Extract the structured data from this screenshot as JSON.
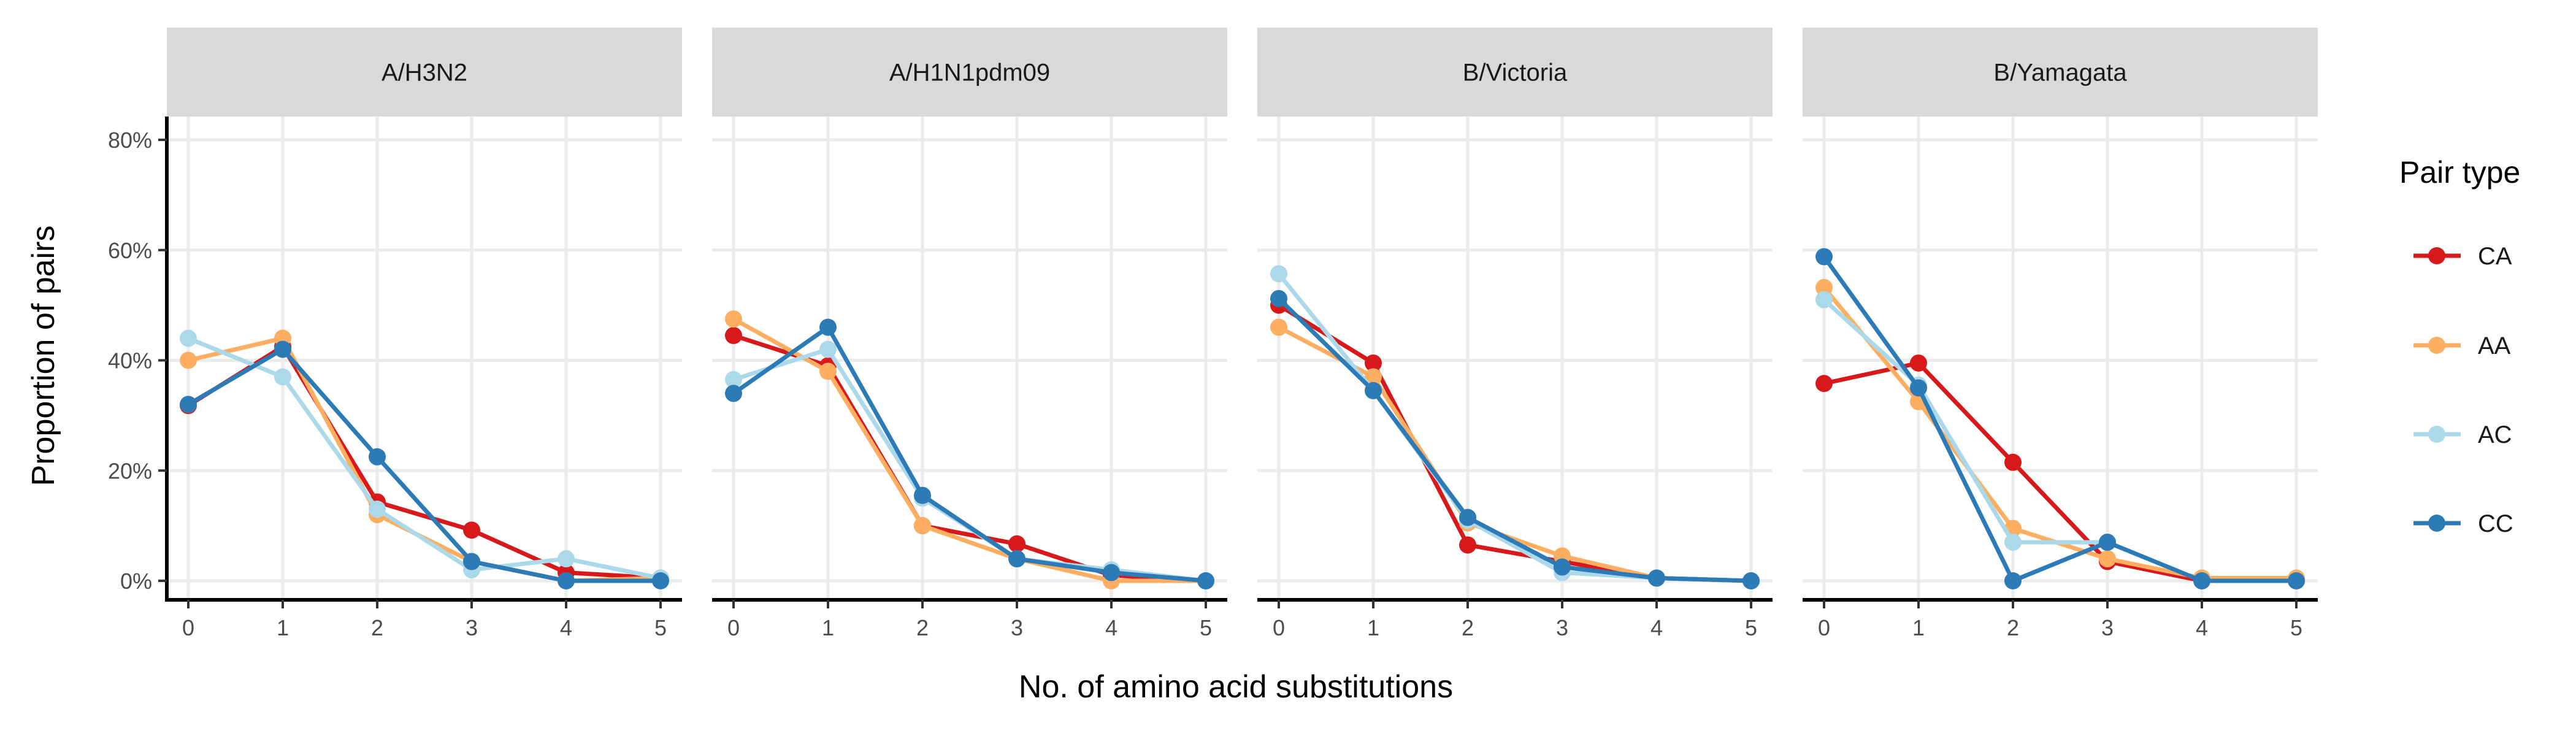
{
  "chart_data": {
    "type": "line",
    "xlabel": "No. of amino acid substitutions",
    "ylabel": "Proportion of pairs",
    "x": [
      0,
      1,
      2,
      3,
      4,
      5
    ],
    "xticks": [
      "0",
      "1",
      "2",
      "3",
      "4",
      "5"
    ],
    "ylim": [
      0,
      0.8
    ],
    "yticks": [
      0,
      0.2,
      0.4,
      0.6,
      0.8
    ],
    "ytick_labels": [
      "0%",
      "20%",
      "40%",
      "60%",
      "80%"
    ],
    "grid": true,
    "legend": {
      "title": "Pair type",
      "position": "right",
      "entries": [
        {
          "name": "CA",
          "color": "#d7191c"
        },
        {
          "name": "AA",
          "color": "#fdae61"
        },
        {
          "name": "AC",
          "color": "#abd9e9"
        },
        {
          "name": "CC",
          "color": "#2c7bb6"
        }
      ]
    },
    "panels": [
      {
        "title": "A/H3N2",
        "series": [
          {
            "name": "CA",
            "color": "#d7191c",
            "values": [
              0.318,
              0.425,
              0.143,
              0.092,
              0.015,
              0.005
            ]
          },
          {
            "name": "AA",
            "color": "#fdae61",
            "values": [
              0.4,
              0.44,
              0.12,
              0.035,
              0.0,
              0.005
            ]
          },
          {
            "name": "AC",
            "color": "#abd9e9",
            "values": [
              0.44,
              0.37,
              0.13,
              0.02,
              0.04,
              0.005
            ]
          },
          {
            "name": "CC",
            "color": "#2c7bb6",
            "values": [
              0.32,
              0.42,
              0.225,
              0.035,
              0.0,
              0.0
            ]
          }
        ]
      },
      {
        "title": "A/H1N1pdm09",
        "series": [
          {
            "name": "CA",
            "color": "#d7191c",
            "values": [
              0.445,
              0.39,
              0.1,
              0.067,
              0.01,
              0.0
            ]
          },
          {
            "name": "AA",
            "color": "#fdae61",
            "values": [
              0.475,
              0.38,
              0.1,
              0.04,
              0.0,
              0.0
            ]
          },
          {
            "name": "AC",
            "color": "#abd9e9",
            "values": [
              0.365,
              0.42,
              0.15,
              0.04,
              0.02,
              0.0
            ]
          },
          {
            "name": "CC",
            "color": "#2c7bb6",
            "values": [
              0.34,
              0.46,
              0.155,
              0.04,
              0.015,
              0.0
            ]
          }
        ]
      },
      {
        "title": "B/Victoria",
        "series": [
          {
            "name": "CA",
            "color": "#d7191c",
            "values": [
              0.5,
              0.395,
              0.065,
              0.035,
              0.005,
              0.0
            ]
          },
          {
            "name": "AA",
            "color": "#fdae61",
            "values": [
              0.46,
              0.37,
              0.105,
              0.045,
              0.005,
              0.0
            ]
          },
          {
            "name": "AC",
            "color": "#abd9e9",
            "values": [
              0.557,
              0.345,
              0.11,
              0.015,
              0.005,
              0.0
            ]
          },
          {
            "name": "CC",
            "color": "#2c7bb6",
            "values": [
              0.512,
              0.345,
              0.115,
              0.025,
              0.005,
              0.0
            ]
          }
        ]
      },
      {
        "title": "B/Yamagata",
        "series": [
          {
            "name": "CA",
            "color": "#d7191c",
            "values": [
              0.358,
              0.395,
              0.215,
              0.035,
              0.0,
              0.0
            ]
          },
          {
            "name": "AA",
            "color": "#fdae61",
            "values": [
              0.532,
              0.325,
              0.095,
              0.04,
              0.005,
              0.005
            ]
          },
          {
            "name": "AC",
            "color": "#abd9e9",
            "values": [
              0.51,
              0.355,
              0.07,
              0.07,
              0.0,
              0.0
            ]
          },
          {
            "name": "CC",
            "color": "#2c7bb6",
            "values": [
              0.588,
              0.35,
              0.0,
              0.07,
              0.0,
              0.0
            ]
          }
        ]
      }
    ]
  }
}
